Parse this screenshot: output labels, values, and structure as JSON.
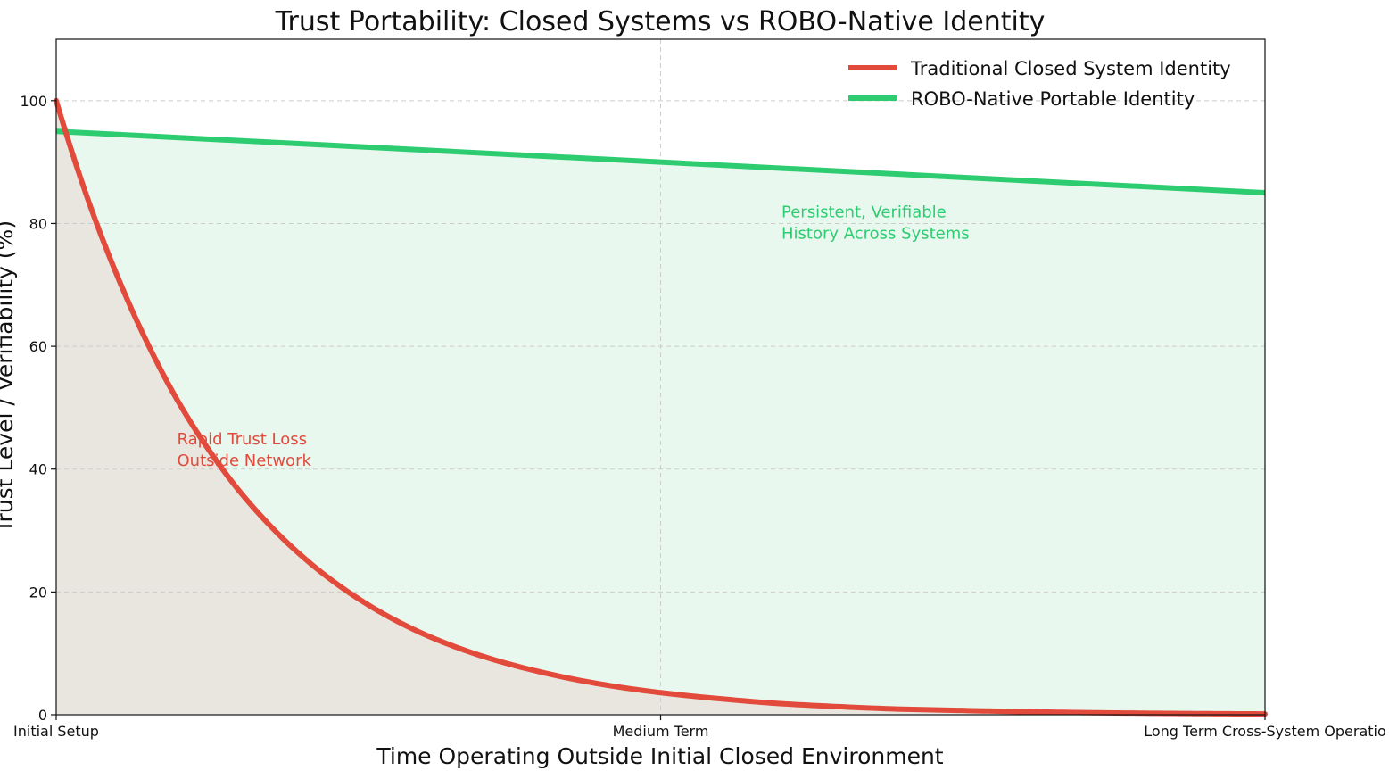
{
  "chart_data": {
    "type": "line",
    "title": "Trust Portability: Closed Systems vs ROBO-Native Identity",
    "xlabel": "Time Operating Outside Initial Closed Environment",
    "ylabel": "Trust Level / Verifiability (%)",
    "xlim": [
      0,
      10
    ],
    "ylim": [
      0,
      110
    ],
    "grid": true,
    "legend_position": "top-right",
    "x_ticks": [
      {
        "value": 0,
        "label": "Initial Setup"
      },
      {
        "value": 5,
        "label": "Medium Term"
      },
      {
        "value": 10,
        "label": "Long Term Cross-System Operatio"
      }
    ],
    "y_ticks": [
      0,
      20,
      40,
      60,
      80,
      100
    ],
    "series": [
      {
        "name": "Traditional Closed System Identity",
        "color": "#e24a3b",
        "fill": "#e8e6de",
        "x": [
          0,
          0.25,
          0.5,
          0.75,
          1,
          1.25,
          1.5,
          1.75,
          2,
          2.5,
          3,
          3.5,
          4,
          4.5,
          5,
          5.5,
          6,
          6.5,
          7,
          7.5,
          8,
          8.5,
          9,
          9.5,
          10
        ],
        "values": [
          100,
          84.6,
          71.7,
          60.7,
          51.3,
          43.5,
          36.8,
          31.2,
          26.4,
          18.9,
          13.5,
          9.7,
          7.0,
          5.0,
          3.6,
          2.6,
          1.8,
          1.3,
          0.9,
          0.7,
          0.5,
          0.35,
          0.25,
          0.18,
          0.13
        ]
      },
      {
        "name": "ROBO-Native Portable Identity",
        "color": "#2ecc71",
        "fill": "#e8f8ee",
        "x": [
          0,
          2.5,
          5,
          7.5,
          10
        ],
        "values": [
          95,
          92.5,
          90,
          87.5,
          85
        ]
      }
    ],
    "annotations": [
      {
        "lines": [
          "Rapid Trust Loss",
          "Outside Network"
        ],
        "x": 1.0,
        "y": 44,
        "color": "#e24a3b"
      },
      {
        "lines": [
          "Persistent, Verifiable",
          "History Across Systems"
        ],
        "x": 6.0,
        "y": 81,
        "color": "#2ecc71"
      }
    ]
  }
}
